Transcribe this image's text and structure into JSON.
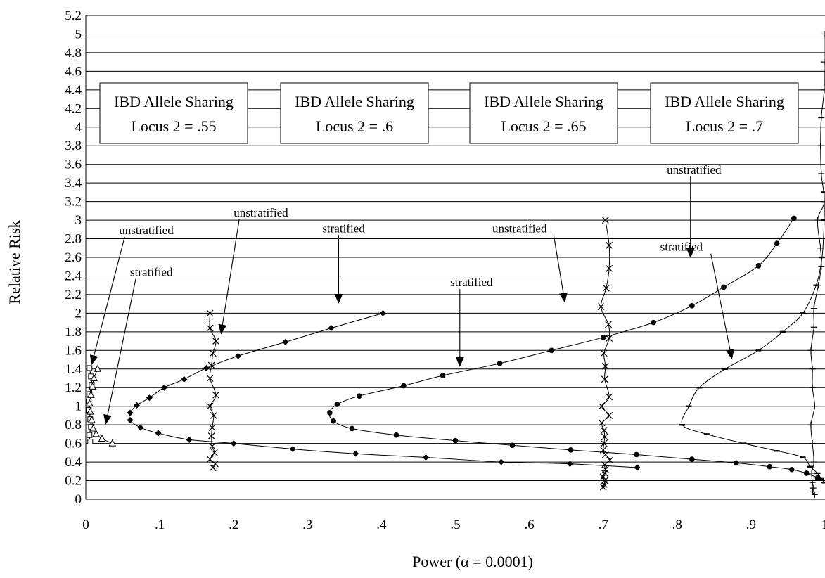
{
  "chart_data": {
    "type": "scatter",
    "title": "",
    "xlabel": "Power (α = 0.0001)",
    "ylabel": "Relative Risk",
    "xlim": [
      0,
      1
    ],
    "ylim": [
      0,
      5.2
    ],
    "grid": "horizontal",
    "x_tick_labels": [
      "0",
      ".1",
      ".2",
      ".3",
      ".4",
      ".5",
      ".6",
      ".7",
      ".8",
      ".9",
      "1"
    ],
    "x_tick_values": [
      0,
      0.1,
      0.2,
      0.3,
      0.4,
      0.5,
      0.6,
      0.7,
      0.8,
      0.9,
      1.0
    ],
    "y_tick_labels": [
      "0",
      "0.2",
      "0.4",
      "0.6",
      "0.8",
      "1",
      "1.2",
      "1.4",
      "1.6",
      "1.8",
      "2",
      "2.2",
      "2.4",
      "2.6",
      "2.8",
      "3",
      "3.2",
      "3.4",
      "3.6",
      "3.8",
      "4",
      "4.2",
      "4.4",
      "4.6",
      "4.8",
      "5",
      "5.2"
    ],
    "y_tick_values": [
      0,
      0.2,
      0.4,
      0.6,
      0.8,
      1.0,
      1.2,
      1.4,
      1.6,
      1.8,
      2.0,
      2.2,
      2.4,
      2.6,
      2.8,
      3.0,
      3.2,
      3.4,
      3.6,
      3.8,
      4.0,
      4.2,
      4.4,
      4.6,
      4.8,
      5.0,
      5.2
    ],
    "boxes": [
      {
        "line1": "IBD Allele Sharing",
        "line2": "Locus 2 = .55"
      },
      {
        "line1": "IBD Allele Sharing",
        "line2": "Locus 2 = .6"
      },
      {
        "line1": "IBD Allele Sharing",
        "line2": "Locus 2 = .65"
      },
      {
        "line1": "IBD Allele Sharing",
        "line2": "Locus 2 = .7"
      }
    ],
    "annotations": [
      {
        "text": "unstratified",
        "x": 0.045,
        "y": 2.85,
        "arrow_to": [
          0.008,
          1.45
        ]
      },
      {
        "text": "stratified",
        "x": 0.06,
        "y": 2.4,
        "arrow_to": [
          0.027,
          0.81
        ]
      },
      {
        "text": "unstratified",
        "x": 0.2,
        "y": 3.04,
        "arrow_to": [
          0.183,
          1.78
        ]
      },
      {
        "text": "stratified",
        "x": 0.32,
        "y": 2.87,
        "arrow_to": [
          0.342,
          2.11
        ]
      },
      {
        "text": "unstratified",
        "x": 0.55,
        "y": 2.87,
        "arrow_to": [
          0.648,
          2.12
        ]
      },
      {
        "text": "stratified",
        "x": 0.493,
        "y": 2.29,
        "arrow_to": [
          0.506,
          1.43
        ]
      },
      {
        "text": "unstratified",
        "x": 0.786,
        "y": 3.5,
        "arrow_to": [
          0.818,
          2.6
        ]
      },
      {
        "text": "stratified",
        "x": 0.777,
        "y": 2.67,
        "arrow_to": [
          0.874,
          1.51
        ]
      }
    ],
    "series": [
      {
        "group": ".55",
        "kind": "unstratified",
        "marker": "square",
        "points": [
          [
            0.005,
            1.41
          ],
          [
            0.007,
            1.32
          ],
          [
            0.008,
            1.23
          ],
          [
            0.005,
            1.13
          ],
          [
            0.004,
            1.05
          ],
          [
            0.004,
            0.96
          ],
          [
            0.006,
            0.86
          ],
          [
            0.007,
            0.78
          ],
          [
            0.005,
            0.69
          ],
          [
            0.006,
            0.62
          ]
        ]
      },
      {
        "group": ".55",
        "kind": "stratified",
        "marker": "triangle",
        "points": [
          [
            0.016,
            1.4
          ],
          [
            0.011,
            1.3
          ],
          [
            0.009,
            1.21
          ],
          [
            0.007,
            1.12
          ],
          [
            0.005,
            1.03
          ],
          [
            0.006,
            0.94
          ],
          [
            0.008,
            0.85
          ],
          [
            0.01,
            0.76
          ],
          [
            0.014,
            0.7
          ],
          [
            0.022,
            0.65
          ],
          [
            0.036,
            0.6
          ]
        ]
      },
      {
        "group": ".6",
        "kind": "unstratified",
        "marker": "x",
        "points": [
          [
            0.168,
            2.0
          ],
          [
            0.168,
            1.84
          ],
          [
            0.176,
            1.7
          ],
          [
            0.172,
            1.57
          ],
          [
            0.17,
            1.44
          ],
          [
            0.168,
            1.3
          ],
          [
            0.176,
            1.12
          ],
          [
            0.168,
            1.0
          ],
          [
            0.173,
            0.9
          ],
          [
            0.171,
            0.77
          ],
          [
            0.17,
            0.68
          ],
          [
            0.171,
            0.57
          ],
          [
            0.174,
            0.5
          ],
          [
            0.168,
            0.43
          ],
          [
            0.175,
            0.38
          ],
          [
            0.172,
            0.34
          ]
        ]
      },
      {
        "group": ".6",
        "kind": "stratified",
        "marker": "diamond",
        "points": [
          [
            0.402,
            2.0
          ],
          [
            0.332,
            1.84
          ],
          [
            0.27,
            1.69
          ],
          [
            0.206,
            1.54
          ],
          [
            0.163,
            1.41
          ],
          [
            0.133,
            1.29
          ],
          [
            0.106,
            1.2
          ],
          [
            0.086,
            1.09
          ],
          [
            0.069,
            1.01
          ],
          [
            0.06,
            0.93
          ],
          [
            0.06,
            0.85
          ],
          [
            0.074,
            0.77
          ],
          [
            0.098,
            0.71
          ],
          [
            0.14,
            0.64
          ],
          [
            0.2,
            0.6
          ],
          [
            0.28,
            0.54
          ],
          [
            0.365,
            0.49
          ],
          [
            0.46,
            0.45
          ],
          [
            0.562,
            0.4
          ],
          [
            0.655,
            0.38
          ],
          [
            0.746,
            0.34
          ]
        ]
      },
      {
        "group": ".65",
        "kind": "unstratified",
        "marker": "x",
        "points": [
          [
            0.703,
            3.0
          ],
          [
            0.708,
            2.73
          ],
          [
            0.708,
            2.48
          ],
          [
            0.704,
            2.27
          ],
          [
            0.697,
            2.07
          ],
          [
            0.707,
            1.88
          ],
          [
            0.708,
            1.73
          ],
          [
            0.701,
            1.57
          ],
          [
            0.703,
            1.43
          ],
          [
            0.702,
            1.29
          ],
          [
            0.708,
            1.1
          ],
          [
            0.698,
            1.0
          ],
          [
            0.708,
            0.9
          ],
          [
            0.698,
            0.82
          ],
          [
            0.701,
            0.74
          ],
          [
            0.702,
            0.67
          ],
          [
            0.701,
            0.6
          ],
          [
            0.7,
            0.53
          ],
          [
            0.703,
            0.48
          ],
          [
            0.709,
            0.42
          ],
          [
            0.702,
            0.37
          ],
          [
            0.703,
            0.32
          ],
          [
            0.702,
            0.28
          ],
          [
            0.7,
            0.24
          ],
          [
            0.702,
            0.2
          ],
          [
            0.701,
            0.16
          ],
          [
            0.7,
            0.13
          ]
        ]
      },
      {
        "group": ".65",
        "kind": "stratified",
        "marker": "dot",
        "points": [
          [
            0.958,
            3.02
          ],
          [
            0.935,
            2.75
          ],
          [
            0.91,
            2.51
          ],
          [
            0.863,
            2.28
          ],
          [
            0.82,
            2.08
          ],
          [
            0.768,
            1.9
          ],
          [
            0.7,
            1.74
          ],
          [
            0.63,
            1.6
          ],
          [
            0.56,
            1.46
          ],
          [
            0.483,
            1.33
          ],
          [
            0.43,
            1.22
          ],
          [
            0.37,
            1.11
          ],
          [
            0.34,
            1.02
          ],
          [
            0.33,
            0.93
          ],
          [
            0.335,
            0.84
          ],
          [
            0.36,
            0.76
          ],
          [
            0.42,
            0.69
          ],
          [
            0.5,
            0.63
          ],
          [
            0.577,
            0.58
          ],
          [
            0.656,
            0.53
          ],
          [
            0.745,
            0.48
          ],
          [
            0.82,
            0.43
          ],
          [
            0.88,
            0.39
          ],
          [
            0.925,
            0.35
          ],
          [
            0.955,
            0.32
          ],
          [
            0.975,
            0.28
          ],
          [
            0.99,
            0.23
          ]
        ]
      },
      {
        "group": ".7",
        "kind": "unstratified",
        "marker": "plus",
        "points": [
          [
            0.999,
            5.0
          ],
          [
            0.999,
            4.7
          ],
          [
            0.999,
            4.4
          ],
          [
            0.995,
            4.1
          ],
          [
            0.994,
            3.8
          ],
          [
            0.995,
            3.5
          ],
          [
            0.999,
            3.2
          ],
          [
            0.99,
            3.0
          ],
          [
            0.994,
            2.7
          ],
          [
            0.995,
            2.5
          ],
          [
            0.991,
            2.3
          ],
          [
            0.985,
            2.05
          ],
          [
            0.985,
            1.85
          ],
          [
            0.981,
            1.6
          ],
          [
            0.983,
            1.4
          ],
          [
            0.983,
            1.2
          ],
          [
            0.986,
            1.0
          ],
          [
            0.981,
            0.8
          ],
          [
            0.983,
            0.6
          ],
          [
            0.985,
            0.4
          ],
          [
            0.982,
            0.28
          ],
          [
            0.983,
            0.18
          ],
          [
            0.984,
            0.12
          ],
          [
            0.983,
            0.08
          ],
          [
            0.986,
            0.05
          ]
        ]
      },
      {
        "group": ".7",
        "kind": "stratified",
        "marker": "dash",
        "points": [
          [
            0.999,
            3.3
          ],
          [
            0.999,
            3.0
          ],
          [
            0.996,
            2.6
          ],
          [
            0.988,
            2.3
          ],
          [
            0.97,
            2.0
          ],
          [
            0.943,
            1.8
          ],
          [
            0.91,
            1.6
          ],
          [
            0.865,
            1.4
          ],
          [
            0.83,
            1.2
          ],
          [
            0.816,
            1.0
          ],
          [
            0.807,
            0.8
          ],
          [
            0.84,
            0.7
          ],
          [
            0.89,
            0.6
          ],
          [
            0.935,
            0.52
          ],
          [
            0.97,
            0.45
          ],
          [
            0.98,
            0.35
          ],
          [
            0.99,
            0.28
          ],
          [
            0.995,
            0.22
          ],
          [
            0.999,
            0.18
          ]
        ]
      }
    ]
  }
}
